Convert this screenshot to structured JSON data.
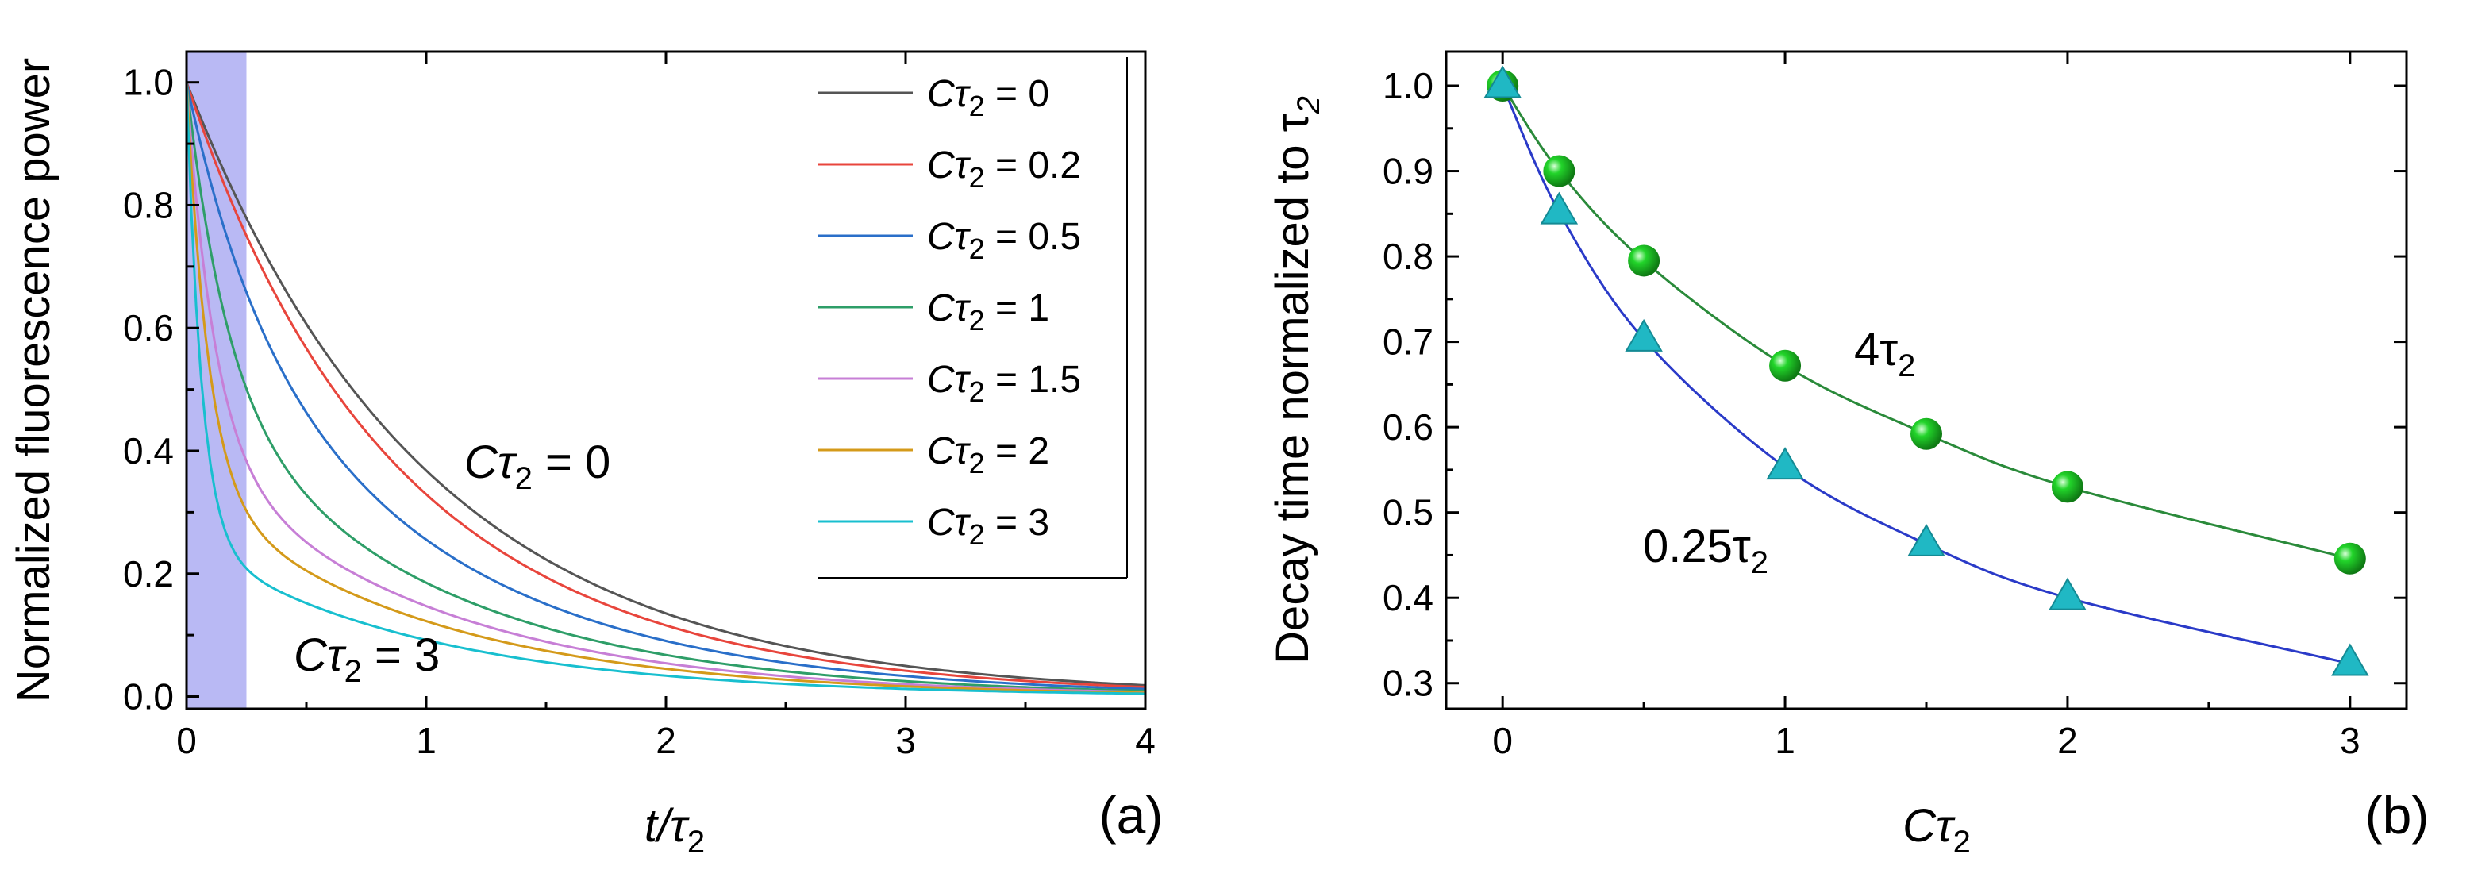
{
  "chart_data": [
    {
      "type": "line",
      "panel_label": "(a)",
      "ylabel": "Normalized fluorescence power",
      "xlabel": {
        "main": "t/τ",
        "sub": "2"
      },
      "xlim": [
        0,
        4
      ],
      "ylim": [
        -0.02,
        1.05
      ],
      "xticks": [
        "0",
        "1",
        "2",
        "3",
        "4"
      ],
      "yticks": [
        "0.0",
        "0.2",
        "0.4",
        "0.6",
        "0.8",
        "1.0"
      ],
      "shaded_region": {
        "x_from": 0,
        "x_to": 0.25,
        "color": "#b9b9f4"
      },
      "legend_position": "top-right",
      "series": [
        {
          "name": "Cτ2 = 0",
          "label": "Cτ",
          "sub": "2",
          "value": " = 0",
          "ctau": 0,
          "color": "#555555"
        },
        {
          "name": "Cτ2 = 0.2",
          "label": "Cτ",
          "sub": "2",
          "value": " = 0.2",
          "ctau": 0.2,
          "color": "#e8453c"
        },
        {
          "name": "Cτ2 = 0.5",
          "label": "Cτ",
          "sub": "2",
          "value": " = 0.5",
          "ctau": 0.5,
          "color": "#2a6fc9"
        },
        {
          "name": "Cτ2 = 1",
          "label": "Cτ",
          "sub": "2",
          "value": " = 1",
          "ctau": 1,
          "color": "#2e9e68"
        },
        {
          "name": "Cτ2 = 1.5",
          "label": "Cτ",
          "sub": "2",
          "value": " = 1.5",
          "ctau": 1.5,
          "color": "#c77fd6"
        },
        {
          "name": "Cτ2 = 2",
          "label": "Cτ",
          "sub": "2",
          "value": " = 2",
          "ctau": 2,
          "color": "#d49a1a"
        },
        {
          "name": "Cτ2 = 3",
          "label": "Cτ",
          "sub": "2",
          "value": " = 3",
          "ctau": 3,
          "color": "#18bfcf"
        }
      ],
      "annotations": [
        {
          "text": "Cτ",
          "sub": "2",
          "rest": " = 0"
        },
        {
          "text": "Cτ",
          "sub": "2",
          "rest": " = 3"
        }
      ]
    },
    {
      "type": "scatter",
      "panel_label": "(b)",
      "ylabel": {
        "main": "Decay time normalized to τ",
        "sub": "2"
      },
      "xlabel": {
        "main": "Cτ",
        "sub": "2"
      },
      "xlim": [
        -0.2,
        3.2
      ],
      "ylim": [
        0.27,
        1.04
      ],
      "xticks": [
        "0",
        "1",
        "2",
        "3"
      ],
      "yticks": [
        "0.3",
        "0.4",
        "0.5",
        "0.6",
        "0.7",
        "0.8",
        "0.9",
        "1.0"
      ],
      "series": [
        {
          "name": "4τ2",
          "label": "4τ",
          "sub": "2",
          "marker": "circle",
          "color": "#22d42a",
          "line_color": "#2a8a3a",
          "x": [
            0,
            0.2,
            0.5,
            1,
            1.5,
            2,
            3
          ],
          "y": [
            1.0,
            0.9,
            0.795,
            0.672,
            0.592,
            0.53,
            0.446
          ]
        },
        {
          "name": "0.25τ2",
          "label": "0.25τ",
          "sub": "2",
          "marker": "triangle",
          "color": "#20b8c4",
          "line_color": "#2a3ac8",
          "x": [
            0,
            0.2,
            0.5,
            1,
            1.5,
            2,
            3
          ],
          "y": [
            1.0,
            0.852,
            0.703,
            0.553,
            0.463,
            0.4,
            0.323
          ]
        }
      ]
    }
  ]
}
